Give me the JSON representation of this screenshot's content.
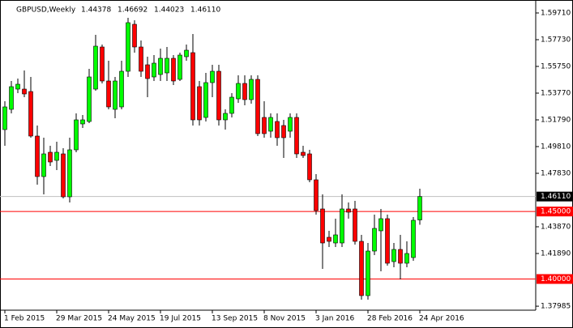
{
  "chart_data": {
    "type": "candlestick",
    "header": {
      "symbol": "GBPUSD,Weekly",
      "ohlc": [
        "1.44378",
        "1.46692",
        "1.44023",
        "1.46110"
      ]
    },
    "categories": [
      "1 Feb 2015",
      null,
      null,
      null,
      null,
      null,
      null,
      null,
      "29 Mar 2015",
      null,
      null,
      null,
      null,
      null,
      null,
      null,
      "24 May 2015",
      null,
      null,
      null,
      null,
      null,
      null,
      null,
      "19 Jul 2015",
      null,
      null,
      null,
      null,
      null,
      null,
      null,
      "13 Sep 2015",
      null,
      null,
      null,
      null,
      null,
      null,
      null,
      "8 Nov 2015",
      null,
      null,
      null,
      null,
      null,
      null,
      null,
      "3 Jan 2016",
      null,
      null,
      null,
      null,
      null,
      null,
      null,
      "28 Feb 2016",
      null,
      null,
      null,
      null,
      null,
      null,
      null,
      "24 Apr 2016"
    ],
    "open": [
      1.5107,
      1.5257,
      1.5407,
      1.5407,
      1.5389,
      1.5059,
      1.4759,
      1.4939,
      1.4879,
      1.4927,
      1.4609,
      1.4957,
      1.5149,
      1.5167,
      1.5407,
      1.5719,
      1.5467,
      1.5257,
      1.5275,
      1.5539,
      1.5887,
      1.5719,
      1.5587,
      1.5497,
      1.5515,
      1.5527,
      1.5635,
      1.5479,
      1.5647,
      1.5677,
      1.5425,
      1.5197,
      1.5455,
      1.5539,
      1.5179,
      1.5227,
      1.5335,
      1.5449,
      1.5329,
      1.5479,
      1.5197,
      1.5095,
      1.5167,
      1.5137,
      1.5095,
      1.5197,
      1.4939,
      1.4927,
      1.4735,
      1.4519,
      1.4309,
      1.4267,
      1.4267,
      1.4519,
      1.4519,
      1.4279,
      1.3877,
      1.4207,
      1.4357,
      1.4447,
      1.4129,
      1.4219,
      1.4117,
      1.4159,
      1.44378
    ],
    "high": [
      1.5317,
      1.5467,
      1.5485,
      1.5545,
      1.5497,
      1.5137,
      1.5047,
      1.4987,
      1.5017,
      1.4969,
      1.5047,
      1.5227,
      1.5215,
      1.5557,
      1.5809,
      1.5737,
      1.5617,
      1.5497,
      1.5617,
      1.5935,
      1.5917,
      1.5767,
      1.5647,
      1.5659,
      1.5707,
      1.5719,
      1.5659,
      1.5677,
      1.5737,
      1.5815,
      1.5467,
      1.5527,
      1.5587,
      1.5587,
      1.5257,
      1.5377,
      1.5509,
      1.5509,
      1.5509,
      1.5509,
      1.5317,
      1.5227,
      1.5227,
      1.5179,
      1.5227,
      1.5227,
      1.4987,
      1.4957,
      1.4777,
      1.4627,
      1.4357,
      1.4447,
      1.4627,
      1.4567,
      1.4579,
      1.4327,
      1.4267,
      1.4477,
      1.4519,
      1.4477,
      1.4267,
      1.4327,
      1.4279,
      1.4459,
      1.46692
    ],
    "low": [
      1.4987,
      1.5227,
      1.5377,
      1.5347,
      1.5047,
      1.4699,
      1.4627,
      1.4837,
      1.4807,
      1.4597,
      1.4567,
      1.4939,
      1.5119,
      1.5155,
      1.5395,
      1.5449,
      1.5257,
      1.5191,
      1.5257,
      1.5497,
      1.5677,
      1.5497,
      1.5347,
      1.5467,
      1.5467,
      1.5467,
      1.5437,
      1.5467,
      1.5617,
      1.5137,
      1.5137,
      1.5167,
      1.5347,
      1.5137,
      1.5107,
      1.5197,
      1.5305,
      1.5287,
      1.5299,
      1.5059,
      1.5047,
      1.5047,
      1.4987,
      1.4897,
      1.5047,
      1.4897,
      1.4897,
      1.4717,
      1.4477,
      1.4075,
      1.4237,
      1.4237,
      1.4237,
      1.4447,
      1.4255,
      1.3847,
      1.3847,
      1.4177,
      1.4057,
      1.4099,
      1.4087,
      1.3997,
      1.4087,
      1.4135,
      1.44023
    ],
    "close": [
      1.5275,
      1.5425,
      1.5443,
      1.5371,
      1.5059,
      1.4759,
      1.4927,
      1.4867,
      1.4939,
      1.4609,
      1.4957,
      1.5179,
      1.5179,
      1.5497,
      1.5725,
      1.5467,
      1.5275,
      1.5467,
      1.5539,
      1.5899,
      1.5719,
      1.5539,
      1.5485,
      1.5599,
      1.5635,
      1.5635,
      1.5467,
      1.5659,
      1.5695,
      1.5179,
      1.5179,
      1.5455,
      1.5539,
      1.5179,
      1.5227,
      1.5347,
      1.5449,
      1.5329,
      1.5479,
      1.5077,
      1.5077,
      1.5197,
      1.5047,
      1.5047,
      1.5197,
      1.4927,
      1.4915,
      1.4735,
      1.4507,
      1.4267,
      1.4279,
      1.4327,
      1.4519,
      1.4495,
      1.4279,
      1.3877,
      1.4207,
      1.4375,
      1.4447,
      1.4117,
      1.4219,
      1.4117,
      1.4189,
      1.4435,
      1.4611
    ],
    "up_color": "#00ff00",
    "down_color": "#ff0000",
    "ylim": [
      1.3769,
      1.6043
    ],
    "yticks": [
      {
        "value": 1.5971,
        "label": "1.59710"
      },
      {
        "value": 1.5773,
        "label": "1.57730"
      },
      {
        "value": 1.5575,
        "label": "1.55750"
      },
      {
        "value": 1.5377,
        "label": "1.53770"
      },
      {
        "value": 1.5179,
        "label": "1.51790"
      },
      {
        "value": 1.4981,
        "label": "1.49810"
      },
      {
        "value": 1.4783,
        "label": "1.47830"
      },
      {
        "value": 1.4387,
        "label": "1.43870"
      },
      {
        "value": 1.4189,
        "label": "1.41890"
      },
      {
        "value": 1.37985,
        "label": "1.37985"
      }
    ],
    "hlines": [
      {
        "value": 1.45,
        "label": "1.45000",
        "color": "#ff0000"
      },
      {
        "value": 1.4,
        "label": "1.40000",
        "color": "#ff0000"
      }
    ],
    "price_line": {
      "value": 1.4611,
      "label": "1.46110",
      "color": "#c0c0c0"
    }
  }
}
